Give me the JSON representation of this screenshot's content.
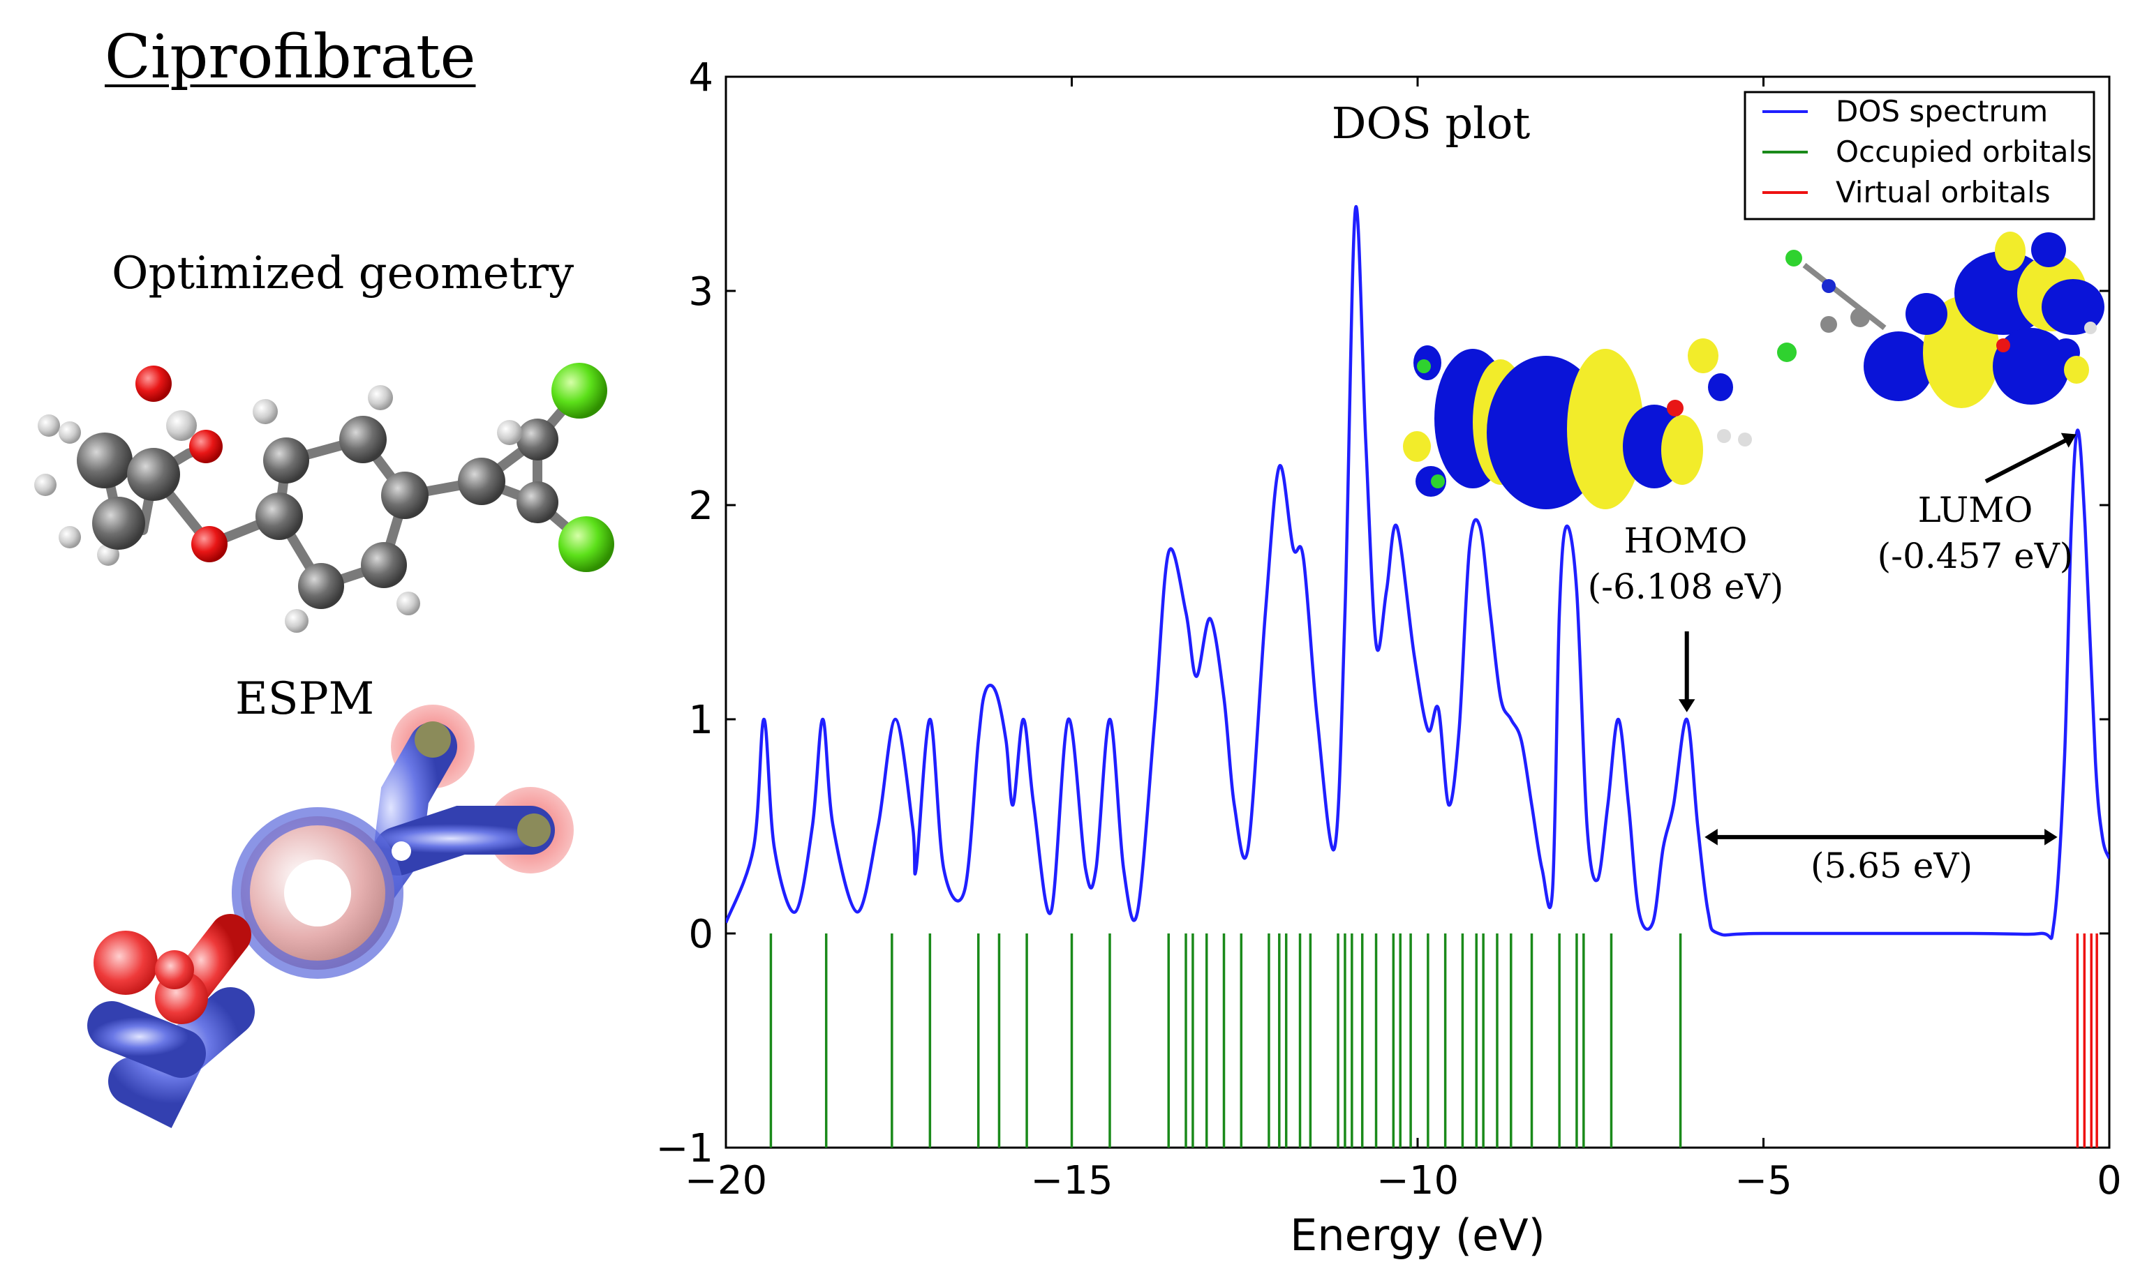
{
  "left_panel": {
    "compound_title": "Ciprofibrate",
    "geometry_caption": "Optimized geometry",
    "espm_caption": "ESPM"
  },
  "chart_data": {
    "type": "line",
    "title": "DOS plot",
    "xlabel": "Energy (eV)",
    "ylabel": "",
    "xlim": [
      -20,
      0
    ],
    "ylim": [
      -1,
      4
    ],
    "x_ticks": [
      "−20",
      "−15",
      "−10",
      "−5",
      "0"
    ],
    "y_ticks": [
      "−1",
      "0",
      "1",
      "2",
      "3",
      "4"
    ],
    "legend_position": "top-right",
    "legend": [
      {
        "label": "DOS spectrum",
        "color": "#1f1fff"
      },
      {
        "label": "Occupied orbitals",
        "color": "#1a8a1a"
      },
      {
        "label": "Virtual orbitals",
        "color": "#ee1111"
      }
    ],
    "series": [
      {
        "name": "DOS spectrum",
        "color": "#1f1fff",
        "x": [
          -20.0,
          -19.6,
          -19.45,
          -19.3,
          -19.0,
          -18.75,
          -18.6,
          -18.45,
          -18.1,
          -17.8,
          -17.55,
          -17.3,
          -17.25,
          -17.05,
          -16.85,
          -16.55,
          -16.35,
          -16.25,
          -16.1,
          -15.95,
          -15.85,
          -15.7,
          -15.55,
          -15.3,
          -15.05,
          -14.8,
          -14.65,
          -14.45,
          -14.25,
          -14.05,
          -13.8,
          -13.6,
          -13.35,
          -13.2,
          -13.0,
          -12.8,
          -12.65,
          -12.45,
          -12.2,
          -12.0,
          -11.8,
          -11.65,
          -11.45,
          -11.2,
          -11.05,
          -10.9,
          -10.75,
          -10.6,
          -10.45,
          -10.3,
          -10.05,
          -9.85,
          -9.7,
          -9.55,
          -9.4,
          -9.25,
          -9.1,
          -8.95,
          -8.8,
          -8.65,
          -8.5,
          -8.35,
          -8.2,
          -8.05,
          -7.95,
          -7.85,
          -7.7,
          -7.55,
          -7.4,
          -7.25,
          -7.1,
          -6.95,
          -6.8,
          -6.6,
          -6.45,
          -6.3,
          -6.108,
          -5.95,
          -5.8,
          -5.65,
          -5.0,
          -2.0,
          -1.0,
          -0.8,
          -0.65,
          -0.55,
          -0.457,
          -0.35,
          -0.2,
          -0.1,
          0.0
        ],
        "y": [
          0.05,
          0.4,
          1.0,
          0.4,
          0.1,
          0.5,
          1.0,
          0.5,
          0.1,
          0.5,
          1.0,
          0.5,
          0.3,
          1.0,
          0.3,
          0.2,
          0.9,
          1.13,
          1.13,
          0.9,
          0.6,
          1.0,
          0.6,
          0.1,
          1.0,
          0.3,
          0.3,
          1.0,
          0.3,
          0.1,
          1.0,
          1.78,
          1.5,
          1.2,
          1.47,
          1.1,
          0.6,
          0.4,
          1.5,
          2.18,
          1.8,
          1.75,
          1.0,
          0.4,
          1.5,
          3.38,
          2.3,
          1.35,
          1.6,
          1.9,
          1.3,
          0.95,
          1.05,
          0.6,
          0.95,
          1.8,
          1.9,
          1.5,
          1.1,
          1.0,
          0.9,
          0.6,
          0.3,
          0.2,
          1.5,
          1.9,
          1.6,
          0.5,
          0.25,
          0.6,
          1.0,
          0.6,
          0.1,
          0.05,
          0.4,
          0.6,
          1.0,
          0.5,
          0.1,
          0.0,
          0.0,
          0.0,
          0.0,
          0.05,
          0.8,
          1.9,
          2.35,
          1.9,
          0.8,
          0.45,
          0.35
        ]
      },
      {
        "name": "Occupied orbitals",
        "color": "#1a8a1a",
        "x": [
          -19.35,
          -18.55,
          -17.6,
          -17.05,
          -16.35,
          -16.05,
          -15.65,
          -15.0,
          -14.45,
          -13.6,
          -13.35,
          -13.25,
          -13.05,
          -12.8,
          -12.55,
          -12.15,
          -12.0,
          -11.9,
          -11.7,
          -11.55,
          -11.15,
          -11.05,
          -10.95,
          -10.8,
          -10.6,
          -10.35,
          -10.25,
          -10.1,
          -9.85,
          -9.6,
          -9.35,
          -9.15,
          -9.05,
          -8.85,
          -8.65,
          -8.35,
          -7.95,
          -7.7,
          -7.6,
          -7.2,
          -6.2
        ],
        "y_range": [
          -1,
          0
        ]
      },
      {
        "name": "Virtual orbitals",
        "color": "#ee1111",
        "x": [
          -0.46,
          -0.36,
          -0.26,
          -0.18
        ],
        "y_range": [
          -1,
          0
        ]
      }
    ],
    "annotations": {
      "homo_label": "HOMO",
      "homo_value": "(-6.108 eV)",
      "lumo_label": "LUMO",
      "lumo_value": "(-0.457 eV)",
      "gap_label": "(5.65 eV)",
      "homo_energy": -6.108,
      "lumo_energy": -0.457,
      "gap": 5.65
    }
  },
  "colors": {
    "axis": "#000000",
    "dos": "#1f1fff",
    "occupied": "#1a8a1a",
    "virtual": "#ee1111",
    "orbital_positive": "#0a14d8",
    "orbital_negative": "#f2ec2a"
  }
}
